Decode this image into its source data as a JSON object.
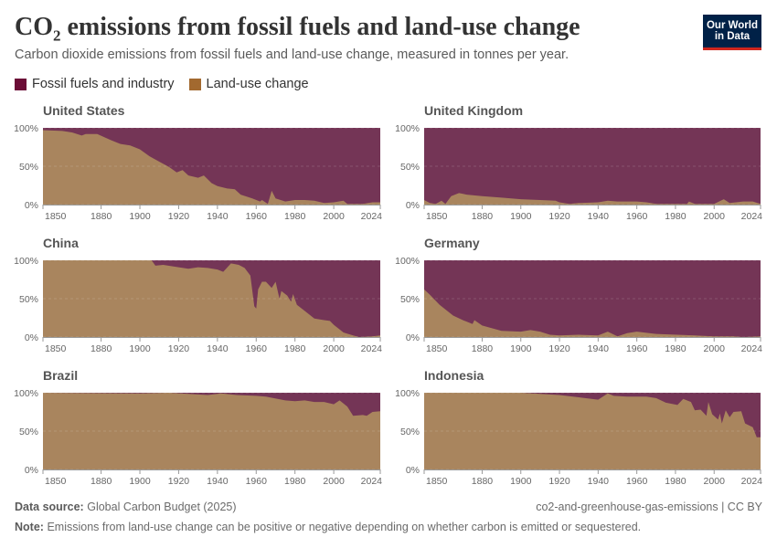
{
  "header": {
    "title_main": "CO",
    "title_sub": "2",
    "title_rest": " emissions from fossil fuels and land-use change",
    "subtitle": "Carbon dioxide emissions from fossil fuels and land-use change, measured in tonnes per year.",
    "logo_line1": "Our World",
    "logo_line2": "in Data"
  },
  "legend": [
    {
      "label": "Fossil fuels and industry",
      "color": "#6b0d36"
    },
    {
      "label": "Land-use change",
      "color": "#a2692f"
    }
  ],
  "footer": {
    "source_label": "Data source:",
    "source": "Global Carbon Budget (2025)",
    "right": "co2-and-greenhouse-gas-emissions | CC BY",
    "note_label": "Note:",
    "note": "Emissions from land-use change can be positive or negative depending on whether carbon is emitted or sequestered."
  },
  "colors": {
    "fossil_area": "#743556",
    "land_area": "#a9855e"
  },
  "chart_data": {
    "type": "area",
    "stacking": "100% stacked",
    "xlim": [
      1850,
      2024
    ],
    "ylim": [
      0,
      100
    ],
    "x_ticks": [
      "1850",
      "1880",
      "1900",
      "1920",
      "1940",
      "1960",
      "1980",
      "2000",
      "2024"
    ],
    "y_ticks": [
      "0%",
      "50%",
      "100%"
    ],
    "grid": "horizontal dashed",
    "legend_position": "top-left",
    "note": "Values are land-use change share (%) of total; fossil fuels and industry share = 100 - land-use share",
    "panels": [
      {
        "title": "United States",
        "x": [
          1850,
          1860,
          1865,
          1870,
          1872,
          1878,
          1885,
          1890,
          1895,
          1900,
          1905,
          1910,
          1915,
          1919,
          1922,
          1925,
          1930,
          1933,
          1937,
          1940,
          1945,
          1949,
          1952,
          1958,
          1962,
          1963,
          1966,
          1968,
          1970,
          1975,
          1980,
          1985,
          1990,
          1995,
          2000,
          2005,
          2007,
          2015,
          2020,
          2024
        ],
        "land_use": [
          97,
          96,
          94,
          90,
          92,
          92,
          84,
          79,
          77,
          72,
          63,
          56,
          49,
          42,
          45,
          38,
          35,
          38,
          28,
          24,
          21,
          20,
          13,
          8,
          4,
          6,
          1,
          18,
          8,
          4,
          6,
          6,
          5,
          2,
          3,
          5,
          1,
          1,
          3,
          3
        ]
      },
      {
        "title": "United Kingdom",
        "x": [
          1850,
          1853,
          1856,
          1859,
          1861,
          1864,
          1868,
          1872,
          1880,
          1890,
          1900,
          1910,
          1918,
          1920,
          1925,
          1930,
          1940,
          1945,
          1950,
          1960,
          1965,
          1970,
          1986,
          1987,
          1990,
          2000,
          2005,
          2008,
          2015,
          2020,
          2024
        ],
        "land_use": [
          6,
          2,
          1,
          5,
          1,
          11,
          15,
          13,
          11,
          9,
          7,
          6,
          5,
          3,
          1,
          2,
          3,
          5,
          4,
          4,
          3,
          1,
          1,
          4,
          1,
          1,
          7,
          2,
          4,
          4,
          1
        ]
      },
      {
        "title": "China",
        "x": [
          1850,
          1906,
          1908,
          1912,
          1920,
          1925,
          1930,
          1935,
          1940,
          1943,
          1947,
          1951,
          1954,
          1957,
          1959,
          1960,
          1961,
          1963,
          1965,
          1968,
          1970,
          1972,
          1973,
          1976,
          1978,
          1979,
          1981,
          1985,
          1990,
          1995,
          1998,
          2000,
          2005,
          2010,
          2013,
          2020,
          2024
        ],
        "land_use": [
          100,
          100,
          93,
          94,
          91,
          89,
          91,
          90,
          88,
          85,
          96,
          94,
          90,
          80,
          40,
          37,
          62,
          72,
          72,
          64,
          72,
          50,
          60,
          54,
          46,
          56,
          42,
          34,
          24,
          22,
          21,
          16,
          6,
          2,
          0,
          1,
          2
        ]
      },
      {
        "title": "Germany",
        "x": [
          1850,
          1853,
          1858,
          1865,
          1870,
          1875,
          1876,
          1880,
          1890,
          1900,
          1905,
          1910,
          1915,
          1920,
          1930,
          1940,
          1945,
          1950,
          1955,
          1960,
          1970,
          1990,
          2000,
          2010,
          2015,
          2024
        ],
        "land_use": [
          62,
          55,
          42,
          28,
          22,
          17,
          22,
          15,
          8,
          7,
          9,
          7,
          3,
          2,
          3,
          2,
          7,
          1,
          5,
          7,
          4,
          2,
          1,
          1,
          0,
          1
        ]
      },
      {
        "title": "Brazil",
        "x": [
          1850,
          1900,
          1915,
          1935,
          1942,
          1950,
          1960,
          1965,
          1975,
          1980,
          1985,
          1990,
          1995,
          2000,
          2003,
          2007,
          2010,
          2015,
          2017,
          2020,
          2024
        ],
        "land_use": [
          100,
          99,
          100,
          97,
          99,
          97,
          96,
          95,
          90,
          89,
          90,
          88,
          88,
          85,
          90,
          82,
          70,
          71,
          70,
          75,
          76
        ]
      },
      {
        "title": "Indonesia",
        "x": [
          1850,
          1900,
          1920,
          1930,
          1940,
          1945,
          1948,
          1955,
          1965,
          1970,
          1975,
          1981,
          1984,
          1988,
          1990,
          1993,
          1996,
          1997,
          1999,
          2002,
          2003,
          2004,
          2006,
          2008,
          2010,
          2014,
          2016,
          2020,
          2022,
          2024
        ],
        "land_use": [
          100,
          100,
          97,
          94,
          91,
          99,
          96,
          95,
          95,
          93,
          87,
          84,
          92,
          88,
          77,
          78,
          70,
          88,
          72,
          65,
          73,
          60,
          77,
          68,
          75,
          76,
          60,
          55,
          42,
          42
        ]
      }
    ]
  }
}
